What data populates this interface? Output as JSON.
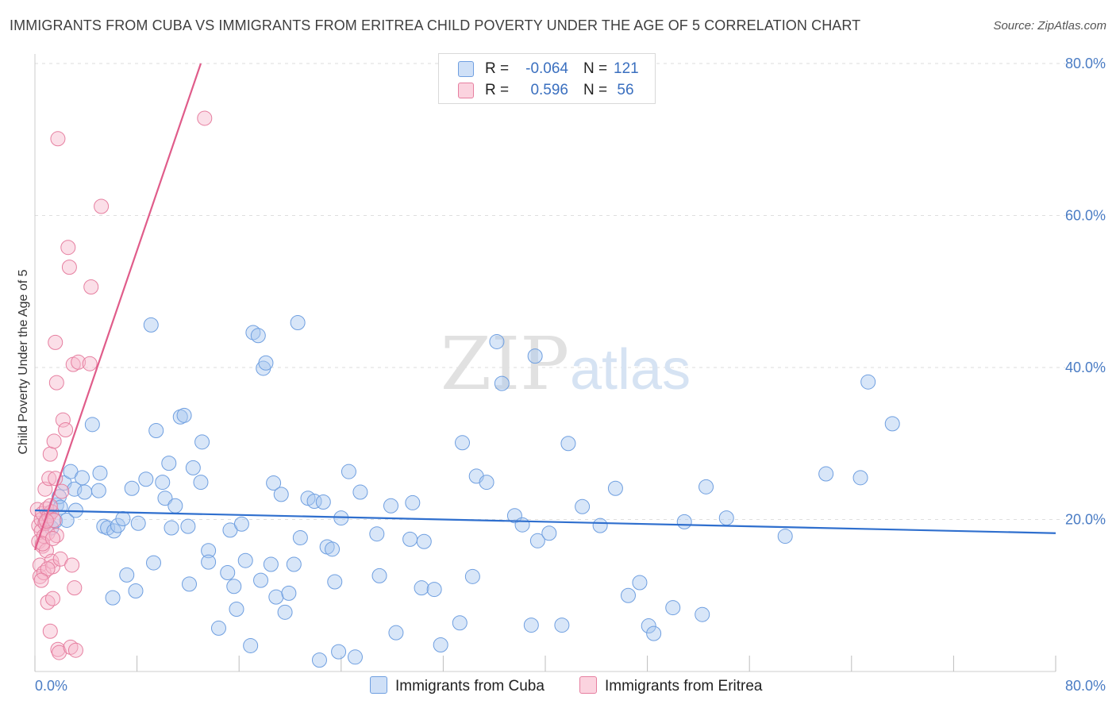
{
  "title": "IMMIGRANTS FROM CUBA VS IMMIGRANTS FROM ERITREA CHILD POVERTY UNDER THE AGE OF 5 CORRELATION CHART",
  "source": "Source: ZipAtlas.com",
  "watermark": {
    "zip": "ZIP",
    "atlas": "atlas"
  },
  "legend": {
    "rows": [
      {
        "r_label": "R =",
        "r_value": "-0.064",
        "n_label": "N =",
        "n_value": "121",
        "color": "#a9c8f0",
        "border": "#6f9fe0"
      },
      {
        "r_label": "R =",
        "r_value": "0.596",
        "n_label": "N =",
        "n_value": "56",
        "color": "#f7b8cb",
        "border": "#e67fa0"
      }
    ]
  },
  "bottom_legend": {
    "cuba": "Immigrants from Cuba",
    "eritrea": "Immigrants from Eritrea"
  },
  "chart_data": {
    "type": "scatter",
    "title": "IMMIGRANTS FROM CUBA VS IMMIGRANTS FROM ERITREA CHILD POVERTY UNDER THE AGE OF 5 CORRELATION CHART",
    "xlabel": "",
    "ylabel": "Child Poverty Under the Age of 5",
    "xlim": [
      0,
      80
    ],
    "ylim": [
      0,
      80
    ],
    "x_tick_labels": [
      "0.0%",
      "80.0%"
    ],
    "y_tick_labels": [
      "20.0%",
      "40.0%",
      "60.0%",
      "80.0%"
    ],
    "y_ticks": [
      20,
      40,
      60,
      80
    ],
    "grid": true,
    "legend_position": "top-center",
    "colors": {
      "cuba_fill": "#a9c8f0",
      "cuba_line": "#2f6fce",
      "eritrea_fill": "#f7b8cb",
      "eritrea_line": "#e05c8a"
    },
    "series": [
      {
        "name": "Immigrants from Cuba",
        "r": -0.064,
        "n": 121,
        "trend": {
          "x": [
            0,
            80
          ],
          "y": [
            21.2,
            18.2
          ]
        },
        "points": [
          [
            0.8,
            19.6
          ],
          [
            1.0,
            20.8
          ],
          [
            1.3,
            18.9
          ],
          [
            1.6,
            19.8
          ],
          [
            1.7,
            21.9
          ],
          [
            1.9,
            23.0
          ],
          [
            2.0,
            21.6
          ],
          [
            2.3,
            24.8
          ],
          [
            2.5,
            19.9
          ],
          [
            2.8,
            26.3
          ],
          [
            3.1,
            24.0
          ],
          [
            3.2,
            21.2
          ],
          [
            3.7,
            25.5
          ],
          [
            3.9,
            23.6
          ],
          [
            4.5,
            32.5
          ],
          [
            5.0,
            23.8
          ],
          [
            5.1,
            26.1
          ],
          [
            5.4,
            19.1
          ],
          [
            5.7,
            18.9
          ],
          [
            6.1,
            9.7
          ],
          [
            6.2,
            18.5
          ],
          [
            6.5,
            19.2
          ],
          [
            6.9,
            20.1
          ],
          [
            7.2,
            12.7
          ],
          [
            7.6,
            24.1
          ],
          [
            7.9,
            10.6
          ],
          [
            8.1,
            19.5
          ],
          [
            8.7,
            25.3
          ],
          [
            9.1,
            45.6
          ],
          [
            9.3,
            14.3
          ],
          [
            9.5,
            31.7
          ],
          [
            10.0,
            24.9
          ],
          [
            10.2,
            22.8
          ],
          [
            10.5,
            27.4
          ],
          [
            10.7,
            18.9
          ],
          [
            11.0,
            21.8
          ],
          [
            11.4,
            33.5
          ],
          [
            11.7,
            33.7
          ],
          [
            12.0,
            19.1
          ],
          [
            12.1,
            11.5
          ],
          [
            12.4,
            26.8
          ],
          [
            13.0,
            24.9
          ],
          [
            13.1,
            30.2
          ],
          [
            13.6,
            15.9
          ],
          [
            13.6,
            14.4
          ],
          [
            14.4,
            5.7
          ],
          [
            15.1,
            13.0
          ],
          [
            15.3,
            18.6
          ],
          [
            15.6,
            11.2
          ],
          [
            15.8,
            8.2
          ],
          [
            16.2,
            19.4
          ],
          [
            16.5,
            14.6
          ],
          [
            16.9,
            3.4
          ],
          [
            17.1,
            44.6
          ],
          [
            17.5,
            44.2
          ],
          [
            17.7,
            12.0
          ],
          [
            17.9,
            39.9
          ],
          [
            18.1,
            40.6
          ],
          [
            18.5,
            14.1
          ],
          [
            18.7,
            24.8
          ],
          [
            18.9,
            9.8
          ],
          [
            19.3,
            23.3
          ],
          [
            19.6,
            7.8
          ],
          [
            19.9,
            10.3
          ],
          [
            20.3,
            14.1
          ],
          [
            20.6,
            45.9
          ],
          [
            20.8,
            17.6
          ],
          [
            21.4,
            22.8
          ],
          [
            21.9,
            22.4
          ],
          [
            22.3,
            1.5
          ],
          [
            22.6,
            22.3
          ],
          [
            22.9,
            16.4
          ],
          [
            23.3,
            16.1
          ],
          [
            23.5,
            11.8
          ],
          [
            23.8,
            2.6
          ],
          [
            24.0,
            20.2
          ],
          [
            24.6,
            26.3
          ],
          [
            25.1,
            1.9
          ],
          [
            25.5,
            23.6
          ],
          [
            26.8,
            18.1
          ],
          [
            27.0,
            12.6
          ],
          [
            27.9,
            21.8
          ],
          [
            28.3,
            5.1
          ],
          [
            29.4,
            17.4
          ],
          [
            29.6,
            22.2
          ],
          [
            30.3,
            11.0
          ],
          [
            30.5,
            17.1
          ],
          [
            31.3,
            10.8
          ],
          [
            31.8,
            3.5
          ],
          [
            33.3,
            6.4
          ],
          [
            33.5,
            30.1
          ],
          [
            34.3,
            12.5
          ],
          [
            34.6,
            25.7
          ],
          [
            35.4,
            24.9
          ],
          [
            36.2,
            43.4
          ],
          [
            36.6,
            37.9
          ],
          [
            37.6,
            20.5
          ],
          [
            38.2,
            19.3
          ],
          [
            38.9,
            6.1
          ],
          [
            39.2,
            41.5
          ],
          [
            39.4,
            17.2
          ],
          [
            40.3,
            18.2
          ],
          [
            41.3,
            6.1
          ],
          [
            41.8,
            30.0
          ],
          [
            42.9,
            21.7
          ],
          [
            44.3,
            19.2
          ],
          [
            45.5,
            24.1
          ],
          [
            46.5,
            10.0
          ],
          [
            47.4,
            11.7
          ],
          [
            48.1,
            6.0
          ],
          [
            48.5,
            5.0
          ],
          [
            50.0,
            8.4
          ],
          [
            50.9,
            19.7
          ],
          [
            52.3,
            7.5
          ],
          [
            52.6,
            24.3
          ],
          [
            54.2,
            20.2
          ],
          [
            58.8,
            17.8
          ],
          [
            62.0,
            26.0
          ],
          [
            64.7,
            25.5
          ],
          [
            65.3,
            38.1
          ],
          [
            67.2,
            32.6
          ]
        ]
      },
      {
        "name": "Immigrants from Eritrea",
        "r": 0.596,
        "n": 56,
        "trend": {
          "x": [
            0,
            13.0
          ],
          "y": [
            16.0,
            80.0
          ]
        },
        "points": [
          [
            0.2,
            21.3
          ],
          [
            0.3,
            19.2
          ],
          [
            0.3,
            17.1
          ],
          [
            0.4,
            14.0
          ],
          [
            0.4,
            12.5
          ],
          [
            0.5,
            20.0
          ],
          [
            0.5,
            18.5
          ],
          [
            0.6,
            16.5
          ],
          [
            0.6,
            20.8
          ],
          [
            0.7,
            13.0
          ],
          [
            0.7,
            17.8
          ],
          [
            0.8,
            19.5
          ],
          [
            0.8,
            24.0
          ],
          [
            0.9,
            15.9
          ],
          [
            0.9,
            21.4
          ],
          [
            1.0,
            9.1
          ],
          [
            1.0,
            18.2
          ],
          [
            1.1,
            25.4
          ],
          [
            1.1,
            20.5
          ],
          [
            1.2,
            5.3
          ],
          [
            1.2,
            28.6
          ],
          [
            1.3,
            14.5
          ],
          [
            1.3,
            21.0
          ],
          [
            1.4,
            9.6
          ],
          [
            1.4,
            13.8
          ],
          [
            1.5,
            30.3
          ],
          [
            1.5,
            19.9
          ],
          [
            1.6,
            25.4
          ],
          [
            1.6,
            43.3
          ],
          [
            1.7,
            38.0
          ],
          [
            1.7,
            17.9
          ],
          [
            1.8,
            70.1
          ],
          [
            1.8,
            2.9
          ],
          [
            1.9,
            2.5
          ],
          [
            2.0,
            14.8
          ],
          [
            2.1,
            23.7
          ],
          [
            2.2,
            33.1
          ],
          [
            2.4,
            31.8
          ],
          [
            2.6,
            55.8
          ],
          [
            2.7,
            53.2
          ],
          [
            2.8,
            3.2
          ],
          [
            2.9,
            14.0
          ],
          [
            3.0,
            40.4
          ],
          [
            3.1,
            11.0
          ],
          [
            3.2,
            2.8
          ],
          [
            3.4,
            40.7
          ],
          [
            4.3,
            40.5
          ],
          [
            4.4,
            50.6
          ],
          [
            5.2,
            61.2
          ],
          [
            13.3,
            72.8
          ],
          [
            0.6,
            16.8
          ],
          [
            0.9,
            19.8
          ],
          [
            1.0,
            13.5
          ],
          [
            1.2,
            21.8
          ],
          [
            0.5,
            12.0
          ],
          [
            1.4,
            17.5
          ]
        ]
      }
    ]
  }
}
